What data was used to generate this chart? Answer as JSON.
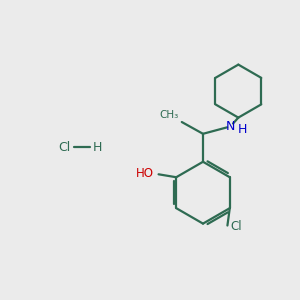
{
  "bg_color": "#ebebeb",
  "bond_color": "#2e6b52",
  "N_color": "#0000cc",
  "O_color": "#cc0000",
  "Cl_color": "#2e6b52",
  "bond_width": 1.6,
  "fig_size": [
    3.0,
    3.0
  ],
  "dpi": 100,
  "xlim": [
    0,
    10
  ],
  "ylim": [
    0,
    10
  ]
}
